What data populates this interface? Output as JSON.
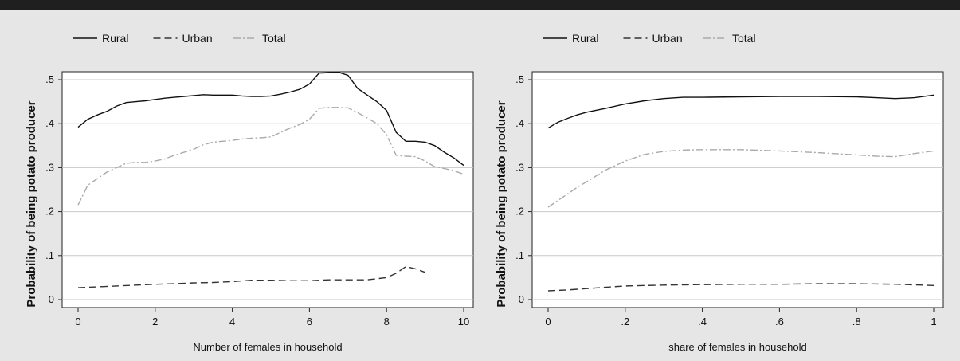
{
  "chart_data": [
    {
      "type": "line",
      "xlabel": "Number of females in household",
      "ylabel": "Probability of being potato producer",
      "xlim": [
        0,
        10
      ],
      "ylim": [
        0,
        0.5
      ],
      "xticks": [
        0,
        2,
        4,
        6,
        8,
        10
      ],
      "xtick_labels": [
        "0",
        "2",
        "4",
        "6",
        "8",
        "10"
      ],
      "yticks": [
        0,
        0.1,
        0.2,
        0.3,
        0.4,
        0.5
      ],
      "ytick_labels": [
        "0",
        ".1",
        ".2",
        ".3",
        ".4",
        ".5"
      ],
      "grid": true,
      "legend_position": "top-left",
      "series": [
        {
          "name": "Rural",
          "style": "solid",
          "color": "#111111",
          "x": [
            0,
            0.25,
            0.5,
            0.75,
            1,
            1.25,
            1.5,
            1.75,
            2,
            2.25,
            2.5,
            2.75,
            3,
            3.25,
            3.5,
            3.75,
            4,
            4.25,
            4.5,
            4.75,
            5,
            5.25,
            5.5,
            5.75,
            6,
            6.25,
            6.5,
            6.75,
            7,
            7.25,
            7.5,
            7.75,
            8,
            8.25,
            8.5,
            8.75,
            9,
            9.25,
            9.5,
            9.75,
            10
          ],
          "y": [
            0.392,
            0.41,
            0.42,
            0.428,
            0.44,
            0.448,
            0.45,
            0.452,
            0.455,
            0.458,
            0.46,
            0.462,
            0.464,
            0.466,
            0.465,
            0.465,
            0.465,
            0.463,
            0.462,
            0.462,
            0.463,
            0.467,
            0.472,
            0.478,
            0.49,
            0.515,
            0.516,
            0.517,
            0.51,
            0.48,
            0.465,
            0.45,
            0.43,
            0.38,
            0.36,
            0.36,
            0.358,
            0.35,
            0.335,
            0.322,
            0.305
          ]
        },
        {
          "name": "Urban",
          "style": "dashed",
          "color": "#333333",
          "x": [
            0,
            0.5,
            1,
            1.5,
            2,
            2.5,
            3,
            3.5,
            4,
            4.5,
            5,
            5.5,
            6,
            6.5,
            7,
            7.5,
            8,
            8.25,
            8.5,
            8.75,
            9
          ],
          "y": [
            0.027,
            0.029,
            0.031,
            0.033,
            0.035,
            0.036,
            0.038,
            0.039,
            0.041,
            0.044,
            0.044,
            0.043,
            0.043,
            0.045,
            0.045,
            0.045,
            0.05,
            0.06,
            0.075,
            0.07,
            0.062
          ]
        },
        {
          "name": "Total",
          "style": "dashdot",
          "color": "#aaaaaa",
          "x": [
            0,
            0.25,
            0.5,
            0.75,
            1,
            1.25,
            1.5,
            1.75,
            2,
            2.25,
            2.5,
            2.75,
            3,
            3.25,
            3.5,
            3.75,
            4,
            4.25,
            4.5,
            4.75,
            5,
            5.25,
            5.5,
            5.75,
            6,
            6.25,
            6.5,
            6.75,
            7,
            7.25,
            7.5,
            7.75,
            8,
            8.25,
            8.5,
            8.75,
            9,
            9.25,
            9.5,
            9.75,
            10
          ],
          "y": [
            0.215,
            0.26,
            0.275,
            0.29,
            0.3,
            0.31,
            0.312,
            0.312,
            0.315,
            0.32,
            0.328,
            0.335,
            0.342,
            0.352,
            0.358,
            0.36,
            0.362,
            0.365,
            0.367,
            0.368,
            0.37,
            0.38,
            0.39,
            0.398,
            0.41,
            0.435,
            0.437,
            0.437,
            0.436,
            0.425,
            0.413,
            0.4,
            0.375,
            0.328,
            0.326,
            0.325,
            0.315,
            0.302,
            0.298,
            0.293,
            0.285
          ]
        }
      ]
    },
    {
      "type": "line",
      "xlabel": "share of females in household",
      "ylabel": "Probability of being potato producer",
      "xlim": [
        0,
        1
      ],
      "ylim": [
        0,
        0.5
      ],
      "xticks": [
        0,
        0.2,
        0.4,
        0.6,
        0.8,
        1
      ],
      "xtick_labels": [
        "0",
        ".2",
        ".4",
        ".6",
        ".8",
        "1"
      ],
      "yticks": [
        0,
        0.1,
        0.2,
        0.3,
        0.4,
        0.5
      ],
      "ytick_labels": [
        "0",
        ".1",
        ".2",
        ".3",
        ".4",
        ".5"
      ],
      "grid": true,
      "legend_position": "top-left",
      "series": [
        {
          "name": "Rural",
          "style": "solid",
          "color": "#111111",
          "x": [
            0,
            0.025,
            0.05,
            0.075,
            0.1,
            0.15,
            0.2,
            0.25,
            0.3,
            0.35,
            0.4,
            0.5,
            0.6,
            0.7,
            0.8,
            0.85,
            0.9,
            0.95,
            1
          ],
          "y": [
            0.39,
            0.403,
            0.412,
            0.42,
            0.426,
            0.435,
            0.445,
            0.452,
            0.457,
            0.46,
            0.46,
            0.461,
            0.462,
            0.462,
            0.461,
            0.459,
            0.457,
            0.459,
            0.465
          ]
        },
        {
          "name": "Urban",
          "style": "dashed",
          "color": "#333333",
          "x": [
            0,
            0.05,
            0.1,
            0.15,
            0.2,
            0.3,
            0.4,
            0.5,
            0.6,
            0.7,
            0.8,
            0.9,
            1
          ],
          "y": [
            0.02,
            0.022,
            0.025,
            0.028,
            0.031,
            0.033,
            0.034,
            0.035,
            0.035,
            0.036,
            0.036,
            0.035,
            0.032
          ]
        },
        {
          "name": "Total",
          "style": "dashdot",
          "color": "#aaaaaa",
          "x": [
            0,
            0.025,
            0.05,
            0.075,
            0.1,
            0.15,
            0.2,
            0.25,
            0.3,
            0.35,
            0.4,
            0.5,
            0.6,
            0.7,
            0.8,
            0.85,
            0.9,
            0.95,
            1
          ],
          "y": [
            0.21,
            0.225,
            0.24,
            0.255,
            0.268,
            0.295,
            0.315,
            0.33,
            0.337,
            0.34,
            0.341,
            0.341,
            0.338,
            0.334,
            0.329,
            0.326,
            0.325,
            0.332,
            0.338
          ]
        }
      ]
    }
  ]
}
